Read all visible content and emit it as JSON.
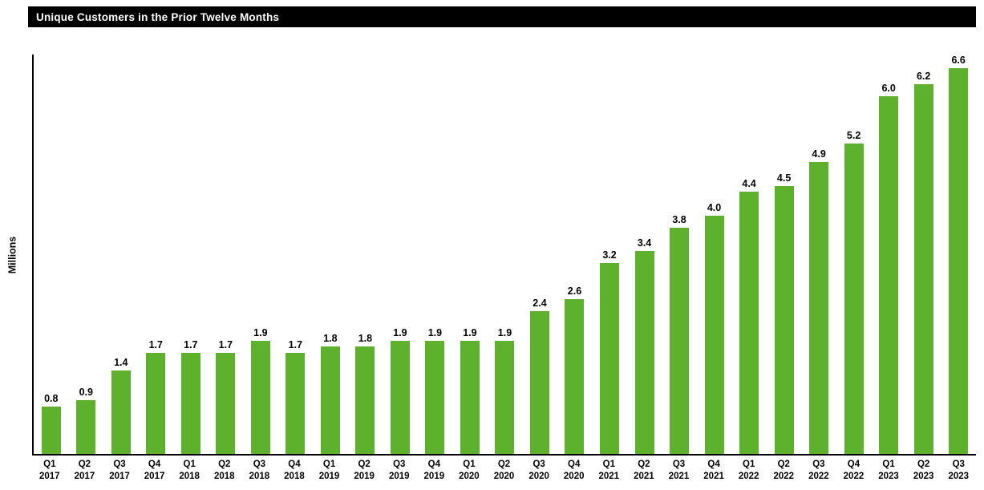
{
  "header": {
    "title": "Unique Customers in the Prior Twelve Months"
  },
  "colors": {
    "bar": "#5EB12D",
    "axis": "#000000",
    "title_bar_bg": "#000000",
    "title_bar_text": "#ffffff"
  },
  "chart_data": {
    "type": "bar",
    "title": "Unique Customers in the Prior Twelve Months",
    "xlabel": "",
    "ylabel": "Millions",
    "ylim": [
      0,
      6.7
    ],
    "grid": false,
    "legend": "none",
    "value_labels_shown": true,
    "categories": [
      "Q1 2017",
      "Q2 2017",
      "Q3 2017",
      "Q4 2017",
      "Q1 2018",
      "Q2 2018",
      "Q3 2018",
      "Q4 2018",
      "Q1 2019",
      "Q2 2019",
      "Q3 2019",
      "Q4 2019",
      "Q1 2020",
      "Q2 2020",
      "Q3 2020",
      "Q4 2020",
      "Q1 2021",
      "Q2 2021",
      "Q3 2021",
      "Q4 2021",
      "Q1 2022",
      "Q2 2022",
      "Q3 2022",
      "Q4 2022",
      "Q1 2023",
      "Q2 2023",
      "Q3 2023"
    ],
    "values": [
      0.8,
      0.9,
      1.4,
      1.7,
      1.7,
      1.7,
      1.9,
      1.7,
      1.8,
      1.8,
      1.9,
      1.9,
      1.9,
      1.9,
      2.4,
      2.6,
      3.2,
      3.4,
      3.8,
      4.0,
      4.4,
      4.5,
      4.9,
      5.2,
      6.0,
      6.2,
      6.6
    ]
  }
}
